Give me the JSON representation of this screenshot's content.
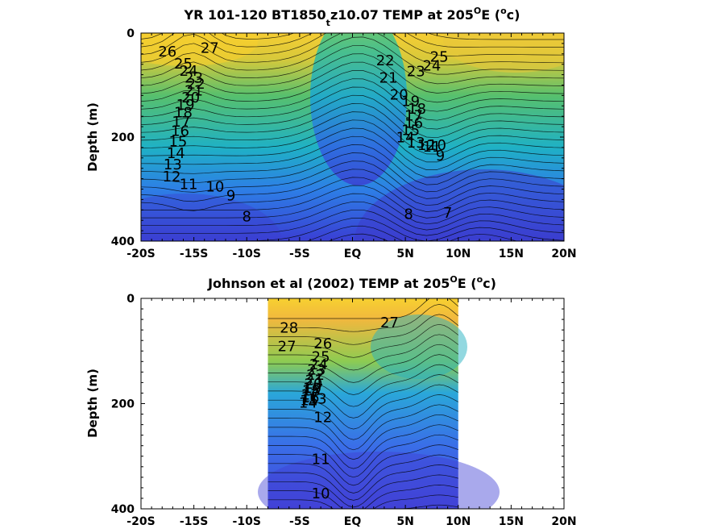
{
  "chart_data": [
    {
      "type": "heatmap",
      "title": {
        "pre": "YR 101-120 BT1850",
        "sub": "t",
        "mid": "z10.07 TEMP at 205",
        "sup1": "O",
        "post1": "E (",
        "sup2": "o",
        "post2": "c)"
      },
      "ylabel": "Depth (m)",
      "xlim": [
        -20,
        20
      ],
      "ylim": [
        0,
        400
      ],
      "x_ticks": [
        -20,
        -15,
        -10,
        -5,
        0,
        5,
        10,
        15,
        20
      ],
      "x_tick_labels": [
        "-20S",
        "-15S",
        "-10S",
        "-5S",
        "EQ",
        "5N",
        "10N",
        "15N",
        "20N"
      ],
      "y_ticks": [
        0,
        200,
        400
      ],
      "y_tick_labels": [
        "0",
        "200",
        "400"
      ],
      "data_extent_lat": [
        -20,
        20
      ],
      "contour_labels": [
        {
          "text": "26",
          "lat": -17.5,
          "depth": 45
        },
        {
          "text": "27",
          "lat": -13.5,
          "depth": 38
        },
        {
          "text": "25",
          "lat": -16,
          "depth": 68
        },
        {
          "text": "24",
          "lat": -15.5,
          "depth": 82
        },
        {
          "text": "23",
          "lat": -15,
          "depth": 95
        },
        {
          "text": "22",
          "lat": -14.8,
          "depth": 107
        },
        {
          "text": "21",
          "lat": -15,
          "depth": 120
        },
        {
          "text": "20",
          "lat": -15.3,
          "depth": 133
        },
        {
          "text": "19",
          "lat": -15.8,
          "depth": 147
        },
        {
          "text": "18",
          "lat": -16,
          "depth": 162
        },
        {
          "text": "17",
          "lat": -16.2,
          "depth": 180
        },
        {
          "text": "16",
          "lat": -16.3,
          "depth": 198
        },
        {
          "text": "15",
          "lat": -16.5,
          "depth": 218
        },
        {
          "text": "14",
          "lat": -16.7,
          "depth": 240
        },
        {
          "text": "13",
          "lat": -17,
          "depth": 262
        },
        {
          "text": "12",
          "lat": -17.1,
          "depth": 285
        },
        {
          "text": "11",
          "lat": -15.5,
          "depth": 300
        },
        {
          "text": "10",
          "lat": -13,
          "depth": 305
        },
        {
          "text": "9",
          "lat": -11.5,
          "depth": 322
        },
        {
          "text": "8",
          "lat": -10,
          "depth": 362
        },
        {
          "text": "22",
          "lat": 3.1,
          "depth": 62
        },
        {
          "text": "23",
          "lat": 6,
          "depth": 83
        },
        {
          "text": "24",
          "lat": 7.5,
          "depth": 72
        },
        {
          "text": "25",
          "lat": 8.2,
          "depth": 55
        },
        {
          "text": "21",
          "lat": 3.4,
          "depth": 95
        },
        {
          "text": "20",
          "lat": 4.4,
          "depth": 128
        },
        {
          "text": "19",
          "lat": 5.5,
          "depth": 140
        },
        {
          "text": "18",
          "lat": 6.1,
          "depth": 155
        },
        {
          "text": "17",
          "lat": 5.8,
          "depth": 168
        },
        {
          "text": "16",
          "lat": 5.8,
          "depth": 182
        },
        {
          "text": "15",
          "lat": 5.5,
          "depth": 196
        },
        {
          "text": "14",
          "lat": 5,
          "depth": 210
        },
        {
          "text": "13",
          "lat": 6,
          "depth": 220
        },
        {
          "text": "12",
          "lat": 7,
          "depth": 225
        },
        {
          "text": "11",
          "lat": 7.5,
          "depth": 228
        },
        {
          "text": "10",
          "lat": 8,
          "depth": 225
        },
        {
          "text": "9",
          "lat": 8.3,
          "depth": 245
        },
        {
          "text": "8",
          "lat": 5.3,
          "depth": 357
        },
        {
          "text": "7",
          "lat": 9,
          "depth": 355
        }
      ]
    },
    {
      "type": "heatmap",
      "title": {
        "pre": "Johnson et al (2002) TEMP at 205",
        "sup1": "O",
        "post1": "E (",
        "sup2": "o",
        "post2": "c)"
      },
      "ylabel": "Depth (m)",
      "xlim": [
        -20,
        20
      ],
      "ylim": [
        0,
        400
      ],
      "x_ticks": [
        -20,
        -15,
        -10,
        -5,
        0,
        5,
        10,
        15,
        20
      ],
      "x_tick_labels": [
        "-20S",
        "-15S",
        "-10S",
        "-5S",
        "EQ",
        "5N",
        "10N",
        "15N",
        "20N"
      ],
      "y_ticks": [
        0,
        200,
        400
      ],
      "y_tick_labels": [
        "0",
        "200",
        "400"
      ],
      "data_extent_lat": [
        -8,
        10
      ],
      "contour_labels": [
        {
          "text": "28",
          "lat": -6,
          "depth": 65
        },
        {
          "text": "27",
          "lat": -6.2,
          "depth": 100
        },
        {
          "text": "27",
          "lat": 3.5,
          "depth": 55
        },
        {
          "text": "26",
          "lat": -2.8,
          "depth": 95
        },
        {
          "text": "25",
          "lat": -3,
          "depth": 120
        },
        {
          "text": "24",
          "lat": -3.2,
          "depth": 135
        },
        {
          "text": "23",
          "lat": -3.4,
          "depth": 145
        },
        {
          "text": "22",
          "lat": -3.5,
          "depth": 155
        },
        {
          "text": "21",
          "lat": -3.6,
          "depth": 165
        },
        {
          "text": "20",
          "lat": -3.7,
          "depth": 172
        },
        {
          "text": "19",
          "lat": -3.8,
          "depth": 180
        },
        {
          "text": "18",
          "lat": -3.9,
          "depth": 185
        },
        {
          "text": "17",
          "lat": -4,
          "depth": 192
        },
        {
          "text": "16",
          "lat": -4,
          "depth": 198
        },
        {
          "text": "15",
          "lat": -4.1,
          "depth": 203
        },
        {
          "text": "14",
          "lat": -4.2,
          "depth": 208
        },
        {
          "text": "13",
          "lat": -3.3,
          "depth": 200
        },
        {
          "text": "12",
          "lat": -2.8,
          "depth": 235
        },
        {
          "text": "11",
          "lat": -3,
          "depth": 315
        },
        {
          "text": "10",
          "lat": -3,
          "depth": 380
        }
      ]
    }
  ]
}
